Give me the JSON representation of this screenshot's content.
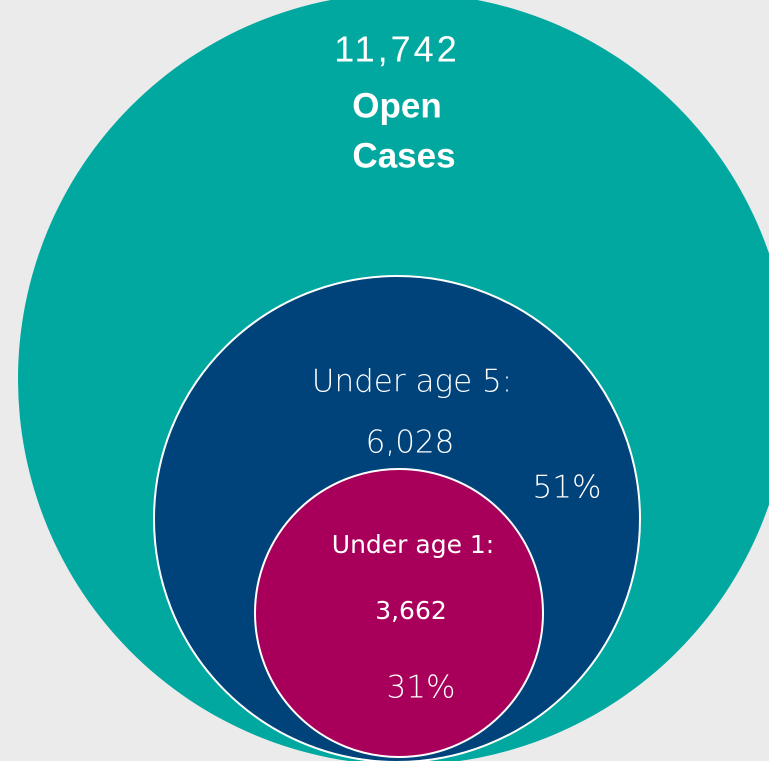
{
  "circles": [
    {
      "count": "11,742",
      "label": [
        "Open",
        "Cases"
      ]
    },
    {
      "label": "Under age 5:",
      "count": "6,028",
      "share": "51%"
    },
    {
      "label": "Under age 1:",
      "count": "3,662",
      "share": "31%"
    }
  ]
}
